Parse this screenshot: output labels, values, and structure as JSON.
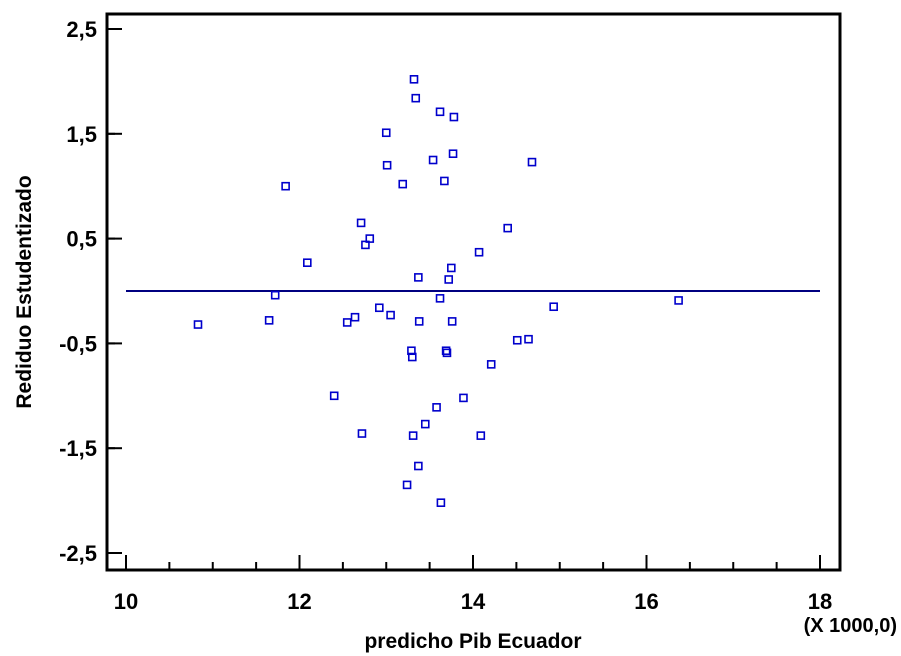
{
  "chart_data": {
    "type": "scatter",
    "xlabel": "predicho Pib Ecuador",
    "ylabel": "Rediduo Estudentizado",
    "x_scale_note": "(X 1000,0)",
    "xlim": [
      10,
      18
    ],
    "ylim": [
      -2.7,
      2.6
    ],
    "x_ticks": [
      10,
      12,
      14,
      16,
      18
    ],
    "x_tick_labels": [
      "10",
      "12",
      "14",
      "16",
      "18"
    ],
    "y_ticks": [
      -2.5,
      -1.5,
      -0.5,
      0.5,
      1.5,
      2.5
    ],
    "y_tick_labels": [
      "-2,5",
      "-1,5",
      "-0,5",
      "0,5",
      "1,5",
      "2,5"
    ],
    "reference_line_y": 0,
    "grid": false,
    "marker": "open-square",
    "point_color": "#0000cc",
    "line_color": "#000080",
    "points": [
      {
        "x": 10.83,
        "y": -0.32
      },
      {
        "x": 11.65,
        "y": -0.28
      },
      {
        "x": 11.72,
        "y": -0.04
      },
      {
        "x": 11.84,
        "y": 1.0
      },
      {
        "x": 12.09,
        "y": 0.27
      },
      {
        "x": 12.4,
        "y": -1.0
      },
      {
        "x": 12.55,
        "y": -0.3
      },
      {
        "x": 12.64,
        "y": -0.25
      },
      {
        "x": 12.71,
        "y": 0.65
      },
      {
        "x": 12.72,
        "y": -1.36
      },
      {
        "x": 12.76,
        "y": 0.44
      },
      {
        "x": 12.81,
        "y": 0.5
      },
      {
        "x": 12.92,
        "y": -0.16
      },
      {
        "x": 13.0,
        "y": 1.51
      },
      {
        "x": 13.01,
        "y": 1.2
      },
      {
        "x": 13.05,
        "y": -0.23
      },
      {
        "x": 13.19,
        "y": 1.02
      },
      {
        "x": 13.24,
        "y": -1.85
      },
      {
        "x": 13.29,
        "y": -0.57
      },
      {
        "x": 13.3,
        "y": -0.63
      },
      {
        "x": 13.31,
        "y": -1.38
      },
      {
        "x": 13.32,
        "y": 2.02
      },
      {
        "x": 13.34,
        "y": 1.84
      },
      {
        "x": 13.37,
        "y": -1.67
      },
      {
        "x": 13.37,
        "y": 0.13
      },
      {
        "x": 13.38,
        "y": -0.29
      },
      {
        "x": 13.45,
        "y": -1.27
      },
      {
        "x": 13.54,
        "y": 1.25
      },
      {
        "x": 13.58,
        "y": -1.11
      },
      {
        "x": 13.62,
        "y": 1.71
      },
      {
        "x": 13.62,
        "y": -0.07
      },
      {
        "x": 13.63,
        "y": -2.02
      },
      {
        "x": 13.67,
        "y": 1.05
      },
      {
        "x": 13.69,
        "y": -0.57
      },
      {
        "x": 13.7,
        "y": -0.59
      },
      {
        "x": 13.72,
        "y": 0.11
      },
      {
        "x": 13.75,
        "y": 0.22
      },
      {
        "x": 13.76,
        "y": -0.29
      },
      {
        "x": 13.77,
        "y": 1.31
      },
      {
        "x": 13.78,
        "y": 1.66
      },
      {
        "x": 13.89,
        "y": -1.02
      },
      {
        "x": 14.07,
        "y": 0.37
      },
      {
        "x": 14.09,
        "y": -1.38
      },
      {
        "x": 14.21,
        "y": -0.7
      },
      {
        "x": 14.4,
        "y": 0.6
      },
      {
        "x": 14.51,
        "y": -0.47
      },
      {
        "x": 14.64,
        "y": -0.46
      },
      {
        "x": 14.68,
        "y": 1.23
      },
      {
        "x": 14.93,
        "y": -0.15
      },
      {
        "x": 16.37,
        "y": -0.09
      }
    ]
  }
}
